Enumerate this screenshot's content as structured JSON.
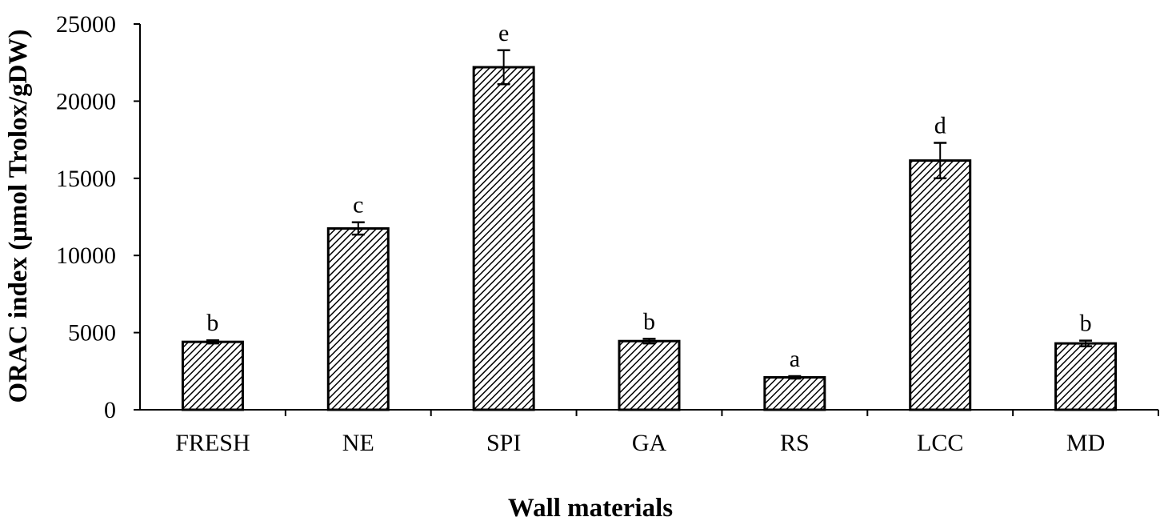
{
  "chart_data": {
    "type": "bar",
    "title": "",
    "xlabel": "Wall materials",
    "ylabel": "ORAC index (μmol Trolox/gDW)",
    "ylim": [
      0,
      25000
    ],
    "yticks": [
      0,
      5000,
      10000,
      15000,
      20000,
      25000
    ],
    "grid": false,
    "categories": [
      "FRESH",
      "NE",
      "SPI",
      "GA",
      "RS",
      "LCC",
      "MD"
    ],
    "values": [
      4400,
      11750,
      22200,
      4450,
      2100,
      16150,
      4300
    ],
    "errors": [
      100,
      400,
      1100,
      150,
      80,
      1150,
      180
    ],
    "significance": [
      "b",
      "c",
      "e",
      "b",
      "a",
      "d",
      "b"
    ],
    "bar_fill": "diagonal hatch",
    "colors": {
      "bar_stroke": "#000000",
      "hatch": "#000000",
      "background": "#ffffff"
    }
  }
}
